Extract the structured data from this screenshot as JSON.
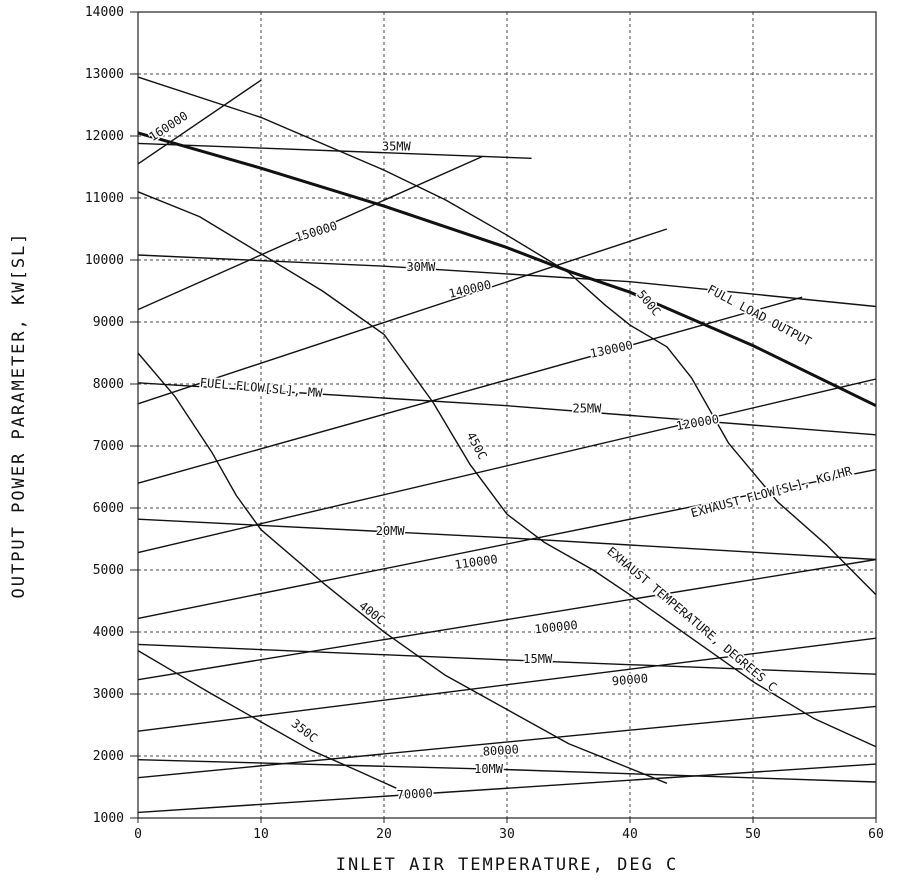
{
  "chart_data": {
    "type": "line",
    "xlabel": "INLET AIR TEMPERATURE, DEG C",
    "ylabel": "OUTPUT POWER PARAMETER, KW[SL]",
    "xlim": [
      0,
      60
    ],
    "ylim": [
      1000,
      14000
    ],
    "x_ticks": [
      "0",
      "10",
      "20",
      "30",
      "40",
      "50",
      "60"
    ],
    "y_ticks": [
      "1000",
      "2000",
      "3000",
      "4000",
      "5000",
      "6000",
      "7000",
      "8000",
      "9000",
      "10000",
      "11000",
      "12000",
      "13000",
      "14000"
    ],
    "grid": true,
    "series": [
      {
        "group": "fuel-flow",
        "name": "35MW",
        "x": [
          0,
          32
        ],
        "y": [
          11880,
          11640
        ]
      },
      {
        "group": "fuel-flow",
        "name": "30MW",
        "x": [
          0,
          20,
          40,
          60
        ],
        "y": [
          10080,
          9900,
          9650,
          9250
        ]
      },
      {
        "group": "fuel-flow",
        "name": "25MW",
        "x": [
          0,
          30,
          60
        ],
        "y": [
          8020,
          7650,
          7180
        ]
      },
      {
        "group": "fuel-flow",
        "name": "20MW",
        "x": [
          0,
          30,
          60
        ],
        "y": [
          5820,
          5520,
          5170
        ]
      },
      {
        "group": "fuel-flow",
        "name": "15MW",
        "x": [
          0,
          30,
          60
        ],
        "y": [
          3800,
          3550,
          3320
        ]
      },
      {
        "group": "fuel-flow",
        "name": "10MW",
        "x": [
          0,
          30,
          60
        ],
        "y": [
          1940,
          1780,
          1580
        ]
      },
      {
        "group": "exhaust-flow",
        "name": "160000",
        "x": [
          0,
          10
        ],
        "y": [
          11550,
          12900
        ]
      },
      {
        "group": "exhaust-flow",
        "name": "150000",
        "x": [
          0,
          28
        ],
        "y": [
          9200,
          11670
        ]
      },
      {
        "group": "exhaust-flow",
        "name": "140000",
        "x": [
          0,
          43
        ],
        "y": [
          7680,
          10500
        ]
      },
      {
        "group": "exhaust-flow",
        "name": "130000",
        "x": [
          0,
          54
        ],
        "y": [
          6400,
          9400
        ]
      },
      {
        "group": "exhaust-flow",
        "name": "120000",
        "x": [
          0,
          60
        ],
        "y": [
          5280,
          8080
        ]
      },
      {
        "group": "exhaust-flow",
        "name": "110000",
        "x": [
          0,
          60
        ],
        "y": [
          4220,
          6620
        ]
      },
      {
        "group": "exhaust-flow",
        "name": "100000",
        "x": [
          0,
          60
        ],
        "y": [
          3230,
          5170
        ]
      },
      {
        "group": "exhaust-flow",
        "name": "90000",
        "x": [
          0,
          60
        ],
        "y": [
          2400,
          3900
        ]
      },
      {
        "group": "exhaust-flow",
        "name": "80000",
        "x": [
          0,
          60
        ],
        "y": [
          1650,
          2800
        ]
      },
      {
        "group": "exhaust-flow",
        "name": "70000",
        "x": [
          0,
          60
        ],
        "y": [
          1090,
          1870
        ]
      },
      {
        "group": "exhaust-temp",
        "name": "500C",
        "x": [
          0,
          10,
          20,
          25,
          30,
          35,
          38,
          40,
          43,
          45,
          48,
          52,
          56,
          60
        ],
        "y": [
          12950,
          12300,
          11450,
          10970,
          10400,
          9800,
          9270,
          8950,
          8600,
          8100,
          7050,
          6100,
          5400,
          4600
        ]
      },
      {
        "group": "exhaust-temp",
        "name": "450C",
        "x": [
          0,
          5,
          10,
          15,
          20,
          24,
          27,
          30,
          33,
          37,
          40,
          45,
          50,
          55,
          60
        ],
        "y": [
          11100,
          10700,
          10100,
          9500,
          8800,
          7700,
          6700,
          5900,
          5450,
          5000,
          4600,
          3900,
          3200,
          2600,
          2150
        ]
      },
      {
        "group": "exhaust-temp",
        "name": "400C",
        "x": [
          0,
          3,
          6,
          8,
          10,
          15,
          20,
          25,
          30,
          35,
          40,
          43
        ],
        "y": [
          8500,
          7800,
          6900,
          6200,
          5650,
          4800,
          4000,
          3300,
          2750,
          2200,
          1800,
          1560
        ]
      },
      {
        "group": "exhaust-temp",
        "name": "350C",
        "x": [
          0,
          3,
          6,
          10,
          14,
          18,
          21
        ],
        "y": [
          3700,
          3350,
          3000,
          2550,
          2100,
          1750,
          1480
        ]
      },
      {
        "group": "full-load",
        "name": "FULL LOAD OUTPUT",
        "x": [
          0,
          10,
          20,
          30,
          35,
          40,
          50,
          60
        ],
        "y": [
          12050,
          11480,
          10870,
          10200,
          9820,
          9480,
          8620,
          7650
        ]
      }
    ],
    "curve_labels": [
      {
        "text": "35MW",
        "x": 21,
        "y": 11820,
        "rotate": 0
      },
      {
        "text": "30MW",
        "x": 23,
        "y": 9880,
        "rotate": 0
      },
      {
        "text": "25MW",
        "x": 36.5,
        "y": 7600,
        "rotate": 0
      },
      {
        "text": "20MW",
        "x": 20.5,
        "y": 5620,
        "rotate": 0
      },
      {
        "text": "15MW",
        "x": 32.5,
        "y": 3560,
        "rotate": 0
      },
      {
        "text": "10MW",
        "x": 28.5,
        "y": 1780,
        "rotate": 0
      },
      {
        "text": "FUEL FLOW[SL], MW",
        "x": 10,
        "y": 7930,
        "rotate": 5
      },
      {
        "text": "160000",
        "x": 2.5,
        "y": 12150,
        "rotate": -33
      },
      {
        "text": "150000",
        "x": 14.5,
        "y": 10450,
        "rotate": -17
      },
      {
        "text": "140000",
        "x": 27,
        "y": 9520,
        "rotate": -13
      },
      {
        "text": "130000",
        "x": 38.5,
        "y": 8550,
        "rotate": -12
      },
      {
        "text": "120000",
        "x": 45.5,
        "y": 7370,
        "rotate": -10
      },
      {
        "text": "110000",
        "x": 27.5,
        "y": 5120,
        "rotate": -8
      },
      {
        "text": "100000",
        "x": 34,
        "y": 4070,
        "rotate": -6
      },
      {
        "text": "90000",
        "x": 40,
        "y": 3220,
        "rotate": -5
      },
      {
        "text": "80000",
        "x": 29.5,
        "y": 2080,
        "rotate": -4
      },
      {
        "text": "70000",
        "x": 22.5,
        "y": 1380,
        "rotate": -3
      },
      {
        "text": "EXHAUST FLOW[SL], KG/HR",
        "x": 51.5,
        "y": 6250,
        "rotate": -15
      },
      {
        "text": "500C",
        "x": 41.5,
        "y": 9300,
        "rotate": 50
      },
      {
        "text": "450C",
        "x": 27.5,
        "y": 7000,
        "rotate": 62
      },
      {
        "text": "400C",
        "x": 19,
        "y": 4300,
        "rotate": 38
      },
      {
        "text": "350C",
        "x": 13.5,
        "y": 2400,
        "rotate": 38
      },
      {
        "text": "EXHAUST TEMPERATURE, DEGREES C",
        "x": 45,
        "y": 4200,
        "rotate": 40
      },
      {
        "text": "FULL LOAD OUTPUT",
        "x": 50.5,
        "y": 9100,
        "rotate": 28
      }
    ]
  }
}
